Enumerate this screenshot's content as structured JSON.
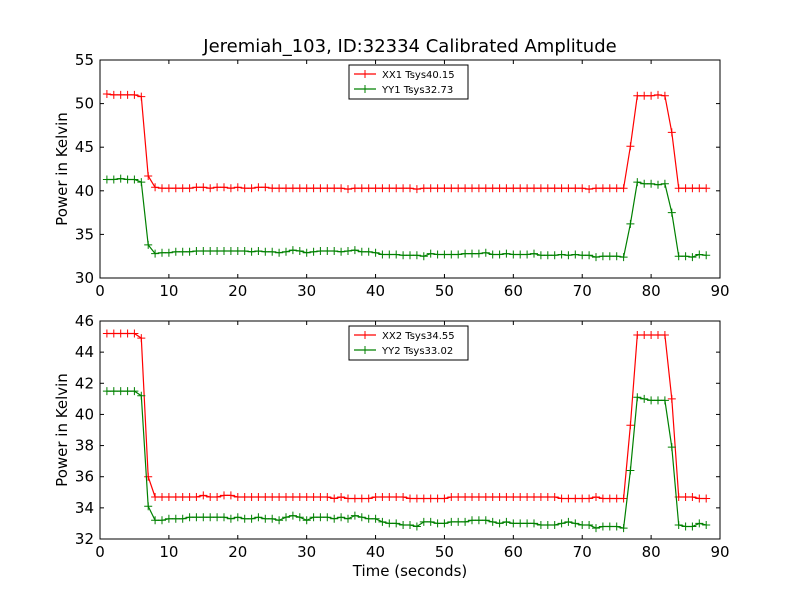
{
  "chart_data": [
    {
      "type": "line",
      "title": "Jeremiah_103, ID:32334 Calibrated Amplitude",
      "xlabel": "",
      "ylabel": "Power in Kelvin",
      "xlim": [
        0,
        90
      ],
      "ylim": [
        30,
        55
      ],
      "xticks": [
        0,
        10,
        20,
        30,
        40,
        50,
        60,
        70,
        80,
        90
      ],
      "yticks": [
        30,
        35,
        40,
        45,
        50,
        55
      ],
      "grid": false,
      "legend": "top-center",
      "series": [
        {
          "name": "XX1 Tsys40.15",
          "color": "#ff0000",
          "x": [
            1,
            2,
            3,
            4,
            5,
            6,
            7,
            8,
            9,
            10,
            11,
            12,
            13,
            14,
            15,
            16,
            17,
            18,
            19,
            20,
            21,
            22,
            23,
            24,
            25,
            26,
            27,
            28,
            29,
            30,
            31,
            32,
            33,
            34,
            35,
            36,
            37,
            38,
            39,
            40,
            41,
            42,
            43,
            44,
            45,
            46,
            47,
            48,
            49,
            50,
            51,
            52,
            53,
            54,
            55,
            56,
            57,
            58,
            59,
            60,
            61,
            62,
            63,
            64,
            65,
            66,
            67,
            68,
            69,
            70,
            71,
            72,
            73,
            74,
            75,
            76,
            77,
            78,
            79,
            80,
            81,
            82,
            83,
            84,
            85,
            86,
            87,
            88
          ],
          "y": [
            51.1,
            51.0,
            51.0,
            51.0,
            51.0,
            50.8,
            41.7,
            40.4,
            40.3,
            40.3,
            40.3,
            40.3,
            40.3,
            40.4,
            40.4,
            40.3,
            40.4,
            40.4,
            40.3,
            40.4,
            40.3,
            40.3,
            40.4,
            40.4,
            40.3,
            40.3,
            40.3,
            40.3,
            40.3,
            40.3,
            40.3,
            40.3,
            40.3,
            40.3,
            40.3,
            40.2,
            40.3,
            40.3,
            40.3,
            40.3,
            40.3,
            40.3,
            40.3,
            40.3,
            40.3,
            40.2,
            40.3,
            40.3,
            40.3,
            40.3,
            40.3,
            40.3,
            40.3,
            40.3,
            40.3,
            40.3,
            40.3,
            40.3,
            40.3,
            40.3,
            40.3,
            40.3,
            40.3,
            40.3,
            40.3,
            40.3,
            40.3,
            40.3,
            40.3,
            40.3,
            40.2,
            40.3,
            40.3,
            40.3,
            40.3,
            40.3,
            45.1,
            50.9,
            50.9,
            50.9,
            51.0,
            50.9,
            46.7,
            40.3,
            40.3,
            40.3,
            40.3,
            40.3
          ]
        },
        {
          "name": "YY1 Tsys32.73",
          "color": "#008000",
          "x": [
            1,
            2,
            3,
            4,
            5,
            6,
            7,
            8,
            9,
            10,
            11,
            12,
            13,
            14,
            15,
            16,
            17,
            18,
            19,
            20,
            21,
            22,
            23,
            24,
            25,
            26,
            27,
            28,
            29,
            30,
            31,
            32,
            33,
            34,
            35,
            36,
            37,
            38,
            39,
            40,
            41,
            42,
            43,
            44,
            45,
            46,
            47,
            48,
            49,
            50,
            51,
            52,
            53,
            54,
            55,
            56,
            57,
            58,
            59,
            60,
            61,
            62,
            63,
            64,
            65,
            66,
            67,
            68,
            69,
            70,
            71,
            72,
            73,
            74,
            75,
            76,
            77,
            78,
            79,
            80,
            81,
            82,
            83,
            84,
            85,
            86,
            87,
            88
          ],
          "y": [
            41.3,
            41.3,
            41.4,
            41.3,
            41.3,
            41.0,
            33.8,
            32.8,
            32.9,
            32.9,
            33.0,
            33.0,
            33.0,
            33.1,
            33.1,
            33.1,
            33.1,
            33.1,
            33.1,
            33.1,
            33.1,
            33.0,
            33.1,
            33.0,
            33.0,
            32.9,
            33.0,
            33.2,
            33.1,
            32.9,
            33.0,
            33.1,
            33.1,
            33.1,
            33.0,
            33.1,
            33.2,
            33.0,
            33.0,
            32.9,
            32.7,
            32.7,
            32.7,
            32.6,
            32.6,
            32.6,
            32.5,
            32.8,
            32.7,
            32.7,
            32.7,
            32.7,
            32.8,
            32.8,
            32.8,
            32.9,
            32.7,
            32.7,
            32.8,
            32.7,
            32.7,
            32.7,
            32.8,
            32.6,
            32.6,
            32.6,
            32.7,
            32.6,
            32.7,
            32.6,
            32.6,
            32.4,
            32.5,
            32.5,
            32.5,
            32.4,
            36.2,
            41.0,
            40.8,
            40.8,
            40.7,
            40.8,
            37.5,
            32.5,
            32.5,
            32.4,
            32.7,
            32.6
          ]
        }
      ]
    },
    {
      "type": "line",
      "title": "",
      "xlabel": "Time (seconds)",
      "ylabel": "Power in Kelvin",
      "xlim": [
        0,
        90
      ],
      "ylim": [
        32,
        46
      ],
      "xticks": [
        0,
        10,
        20,
        30,
        40,
        50,
        60,
        70,
        80,
        90
      ],
      "yticks": [
        32,
        34,
        36,
        38,
        40,
        42,
        44,
        46
      ],
      "grid": false,
      "legend": "top-center",
      "series": [
        {
          "name": "XX2 Tsys34.55",
          "color": "#ff0000",
          "x": [
            1,
            2,
            3,
            4,
            5,
            6,
            7,
            8,
            9,
            10,
            11,
            12,
            13,
            14,
            15,
            16,
            17,
            18,
            19,
            20,
            21,
            22,
            23,
            24,
            25,
            26,
            27,
            28,
            29,
            30,
            31,
            32,
            33,
            34,
            35,
            36,
            37,
            38,
            39,
            40,
            41,
            42,
            43,
            44,
            45,
            46,
            47,
            48,
            49,
            50,
            51,
            52,
            53,
            54,
            55,
            56,
            57,
            58,
            59,
            60,
            61,
            62,
            63,
            64,
            65,
            66,
            67,
            68,
            69,
            70,
            71,
            72,
            73,
            74,
            75,
            76,
            77,
            78,
            79,
            80,
            81,
            82,
            83,
            84,
            85,
            86,
            87,
            88
          ],
          "y": [
            45.2,
            45.2,
            45.2,
            45.2,
            45.2,
            44.9,
            36.0,
            34.7,
            34.7,
            34.7,
            34.7,
            34.7,
            34.7,
            34.7,
            34.8,
            34.7,
            34.7,
            34.8,
            34.8,
            34.7,
            34.7,
            34.7,
            34.7,
            34.7,
            34.7,
            34.7,
            34.7,
            34.7,
            34.7,
            34.7,
            34.7,
            34.7,
            34.7,
            34.6,
            34.7,
            34.6,
            34.6,
            34.6,
            34.6,
            34.7,
            34.7,
            34.7,
            34.7,
            34.7,
            34.6,
            34.6,
            34.6,
            34.6,
            34.6,
            34.6,
            34.7,
            34.7,
            34.7,
            34.7,
            34.7,
            34.7,
            34.7,
            34.7,
            34.7,
            34.7,
            34.7,
            34.7,
            34.7,
            34.7,
            34.7,
            34.7,
            34.6,
            34.6,
            34.6,
            34.6,
            34.6,
            34.7,
            34.6,
            34.6,
            34.6,
            34.6,
            39.3,
            45.1,
            45.1,
            45.1,
            45.1,
            45.1,
            41.0,
            34.7,
            34.7,
            34.7,
            34.6,
            34.6
          ]
        },
        {
          "name": "YY2 Tsys33.02",
          "color": "#008000",
          "x": [
            1,
            2,
            3,
            4,
            5,
            6,
            7,
            8,
            9,
            10,
            11,
            12,
            13,
            14,
            15,
            16,
            17,
            18,
            19,
            20,
            21,
            22,
            23,
            24,
            25,
            26,
            27,
            28,
            29,
            30,
            31,
            32,
            33,
            34,
            35,
            36,
            37,
            38,
            39,
            40,
            41,
            42,
            43,
            44,
            45,
            46,
            47,
            48,
            49,
            50,
            51,
            52,
            53,
            54,
            55,
            56,
            57,
            58,
            59,
            60,
            61,
            62,
            63,
            64,
            65,
            66,
            67,
            68,
            69,
            70,
            71,
            72,
            73,
            74,
            75,
            76,
            77,
            78,
            79,
            80,
            81,
            82,
            83,
            84,
            85,
            86,
            87,
            88
          ],
          "y": [
            41.5,
            41.5,
            41.5,
            41.5,
            41.5,
            41.2,
            34.1,
            33.2,
            33.2,
            33.3,
            33.3,
            33.3,
            33.4,
            33.4,
            33.4,
            33.4,
            33.4,
            33.4,
            33.3,
            33.4,
            33.3,
            33.3,
            33.4,
            33.3,
            33.3,
            33.2,
            33.4,
            33.5,
            33.4,
            33.2,
            33.4,
            33.4,
            33.4,
            33.3,
            33.4,
            33.3,
            33.5,
            33.4,
            33.3,
            33.3,
            33.1,
            33.0,
            33.0,
            32.9,
            32.9,
            32.8,
            33.1,
            33.1,
            33.0,
            33.0,
            33.1,
            33.1,
            33.1,
            33.2,
            33.2,
            33.2,
            33.1,
            33.0,
            33.1,
            33.0,
            33.0,
            33.0,
            33.0,
            32.9,
            32.9,
            32.9,
            33.0,
            33.1,
            33.0,
            32.9,
            32.9,
            32.7,
            32.8,
            32.8,
            32.8,
            32.7,
            36.4,
            41.1,
            41.0,
            40.9,
            40.9,
            40.9,
            37.9,
            32.9,
            32.8,
            32.8,
            33.0,
            32.9
          ]
        }
      ]
    }
  ]
}
